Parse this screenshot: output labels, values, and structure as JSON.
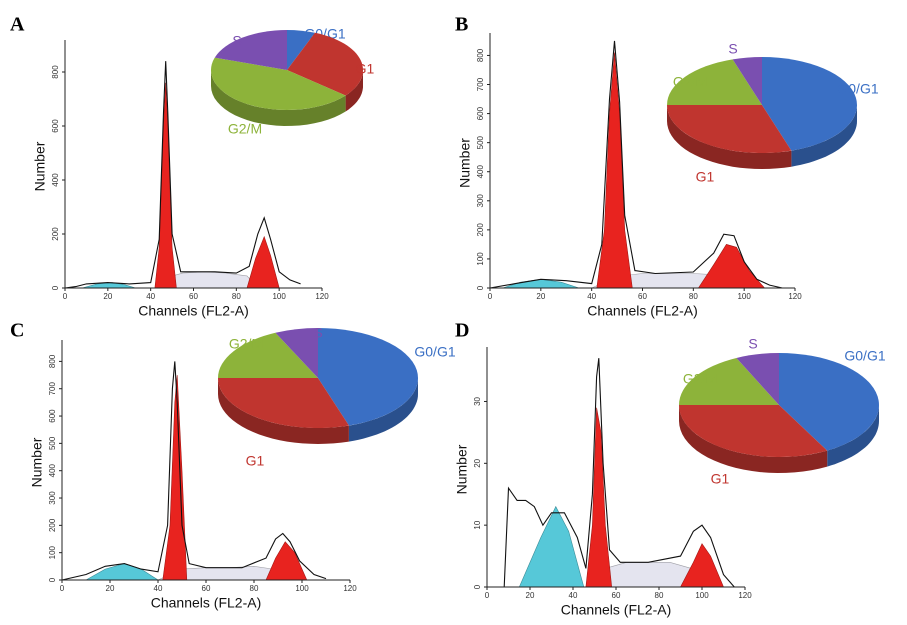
{
  "chart_data": [
    {
      "type": "area",
      "panel_label": "A",
      "x_label": "Channels (FL2-A)",
      "y_label": "Number",
      "xlim": [
        0,
        120
      ],
      "xticks": [
        0,
        20,
        40,
        60,
        80,
        100,
        120
      ],
      "ylim": [
        0,
        900
      ],
      "yticks": [
        0,
        200,
        400,
        600,
        800
      ],
      "series": [
        {
          "color": "#56c8d8",
          "fill": true,
          "x": [
            8,
            15,
            22,
            28,
            33
          ],
          "values": [
            0,
            15,
            20,
            12,
            0
          ]
        },
        {
          "color": "#e4e4ef",
          "fill": true,
          "x": [
            42,
            48,
            55,
            65,
            75,
            85,
            90
          ],
          "values": [
            0,
            40,
            55,
            60,
            55,
            45,
            0
          ]
        },
        {
          "color": "#e8231f",
          "fill": true,
          "x": [
            42,
            44,
            46,
            47,
            48,
            50,
            52
          ],
          "values": [
            0,
            150,
            600,
            760,
            600,
            150,
            0
          ]
        },
        {
          "color": "#e8231f",
          "fill": true,
          "x": [
            85,
            89,
            93,
            96,
            100
          ],
          "values": [
            0,
            110,
            190,
            120,
            0
          ]
        },
        {
          "color": "#111111",
          "fill": false,
          "x": [
            0,
            5,
            10,
            20,
            30,
            40,
            44,
            46,
            47,
            48,
            50,
            54,
            60,
            70,
            80,
            86,
            90,
            93,
            96,
            100,
            105,
            110
          ],
          "values": [
            0,
            5,
            15,
            20,
            15,
            20,
            180,
            650,
            840,
            650,
            200,
            60,
            60,
            60,
            55,
            80,
            200,
            260,
            180,
            60,
            30,
            15
          ]
        }
      ],
      "inset": {
        "type": "pie",
        "categories": [
          "G0/G1",
          "G1",
          "G2/M",
          "S"
        ],
        "values": [
          6,
          30,
          44,
          20
        ],
        "colors": [
          "#3a6fc4",
          "#c0352f",
          "#8db33a",
          "#7a4fb0"
        ]
      }
    },
    {
      "type": "area",
      "panel_label": "B",
      "x_label": "Channels (FL2-A)",
      "y_label": "Number",
      "xlim": [
        0,
        120
      ],
      "xticks": [
        0,
        20,
        40,
        60,
        80,
        100,
        120
      ],
      "ylim": [
        0,
        860
      ],
      "yticks": [
        0,
        100,
        200,
        300,
        400,
        500,
        600,
        700,
        800
      ],
      "series": [
        {
          "color": "#56c8d8",
          "fill": true,
          "x": [
            5,
            12,
            20,
            28,
            35
          ],
          "values": [
            0,
            20,
            30,
            20,
            0
          ]
        },
        {
          "color": "#e4e4ef",
          "fill": true,
          "x": [
            40,
            50,
            60,
            70,
            80,
            90,
            100,
            105
          ],
          "values": [
            0,
            40,
            50,
            50,
            50,
            45,
            20,
            0
          ]
        },
        {
          "color": "#e8231f",
          "fill": true,
          "x": [
            42,
            45,
            47,
            49,
            51,
            53,
            56
          ],
          "values": [
            0,
            200,
            600,
            810,
            600,
            200,
            0
          ]
        },
        {
          "color": "#e8231f",
          "fill": true,
          "x": [
            82,
            88,
            93,
            97,
            102,
            108
          ],
          "values": [
            0,
            80,
            150,
            140,
            60,
            0
          ]
        },
        {
          "color": "#111111",
          "fill": false,
          "x": [
            0,
            10,
            20,
            30,
            40,
            44,
            47,
            49,
            51,
            53,
            57,
            65,
            80,
            88,
            92,
            96,
            100,
            105,
            110,
            115
          ],
          "values": [
            0,
            15,
            30,
            25,
            15,
            150,
            650,
            850,
            640,
            250,
            60,
            50,
            55,
            120,
            185,
            180,
            90,
            30,
            10,
            0
          ]
        }
      ],
      "inset": {
        "type": "pie",
        "categories": [
          "G0/G1",
          "G1",
          "G2/M",
          "S"
        ],
        "values": [
          45,
          30,
          20,
          5
        ],
        "colors": [
          "#3a6fc4",
          "#c0352f",
          "#8db33a",
          "#7a4fb0"
        ]
      }
    },
    {
      "type": "area",
      "panel_label": "C",
      "x_label": "Channels (FL2-A)",
      "y_label": "Number",
      "xlim": [
        0,
        120
      ],
      "xticks": [
        0,
        20,
        40,
        60,
        80,
        100,
        120
      ],
      "ylim": [
        0,
        860
      ],
      "yticks": [
        0,
        100,
        200,
        300,
        400,
        500,
        600,
        700,
        800
      ],
      "series": [
        {
          "color": "#56c8d8",
          "fill": true,
          "x": [
            10,
            18,
            26,
            33,
            40
          ],
          "values": [
            0,
            40,
            60,
            40,
            0
          ]
        },
        {
          "color": "#e4e4ef",
          "fill": true,
          "x": [
            40,
            50,
            60,
            70,
            80,
            88,
            95
          ],
          "values": [
            0,
            40,
            45,
            45,
            50,
            40,
            0
          ]
        },
        {
          "color": "#e8231f",
          "fill": true,
          "x": [
            42,
            45,
            47,
            48,
            50,
            52
          ],
          "values": [
            0,
            200,
            650,
            750,
            400,
            0
          ]
        },
        {
          "color": "#e8231f",
          "fill": true,
          "x": [
            85,
            89,
            93,
            97,
            102
          ],
          "values": [
            0,
            80,
            140,
            100,
            0
          ]
        },
        {
          "color": "#111111",
          "fill": false,
          "x": [
            0,
            10,
            18,
            26,
            33,
            40,
            44,
            46,
            47,
            48,
            50,
            53,
            60,
            75,
            85,
            89,
            92,
            95,
            99,
            105,
            110
          ],
          "values": [
            0,
            20,
            50,
            60,
            40,
            30,
            200,
            700,
            800,
            650,
            200,
            60,
            45,
            45,
            80,
            150,
            170,
            140,
            70,
            20,
            5
          ]
        }
      ],
      "inset": {
        "type": "pie",
        "categories": [
          "G0/G1",
          "G1",
          "G2/M",
          "S"
        ],
        "values": [
          45,
          30,
          18,
          7
        ],
        "colors": [
          "#3a6fc4",
          "#c0352f",
          "#8db33a",
          "#7a4fb0"
        ]
      }
    },
    {
      "type": "area",
      "panel_label": "D",
      "x_label": "Channels (FL2-A)",
      "y_label": "Number",
      "xlim": [
        0,
        120
      ],
      "xticks": [
        0,
        20,
        40,
        60,
        80,
        100,
        120
      ],
      "ylim": [
        0,
        38
      ],
      "yticks": [
        0,
        10,
        20,
        30
      ],
      "series": [
        {
          "color": "#56c8d8",
          "fill": true,
          "x": [
            15,
            25,
            32,
            38,
            45
          ],
          "values": [
            0,
            8,
            13,
            9,
            0
          ]
        },
        {
          "color": "#e4e4ef",
          "fill": true,
          "x": [
            48,
            55,
            65,
            75,
            85,
            95,
            100
          ],
          "values": [
            0,
            3,
            4,
            4,
            4,
            3,
            0
          ]
        },
        {
          "color": "#e8231f",
          "fill": true,
          "x": [
            46,
            49,
            51,
            53,
            55,
            58
          ],
          "values": [
            0,
            10,
            29,
            25,
            10,
            0
          ]
        },
        {
          "color": "#e8231f",
          "fill": true,
          "x": [
            90,
            96,
            100,
            104,
            110
          ],
          "values": [
            0,
            4,
            7,
            5,
            0
          ]
        },
        {
          "color": "#111111",
          "fill": false,
          "x": [
            8,
            10,
            14,
            18,
            22,
            26,
            30,
            36,
            42,
            46,
            49,
            51,
            52,
            54,
            57,
            62,
            75,
            90,
            96,
            100,
            104,
            110,
            115
          ],
          "values": [
            0,
            16,
            14,
            14,
            13,
            10,
            12,
            12,
            8,
            3,
            15,
            34,
            37,
            20,
            6,
            4,
            4,
            5,
            9,
            10,
            8,
            2,
            0
          ]
        }
      ],
      "inset": {
        "type": "pie",
        "categories": [
          "G0/G1",
          "G1",
          "G2/M",
          "S"
        ],
        "values": [
          42,
          33,
          18,
          7
        ],
        "colors": [
          "#3a6fc4",
          "#c0352f",
          "#8db33a",
          "#7a4fb0"
        ]
      }
    }
  ]
}
